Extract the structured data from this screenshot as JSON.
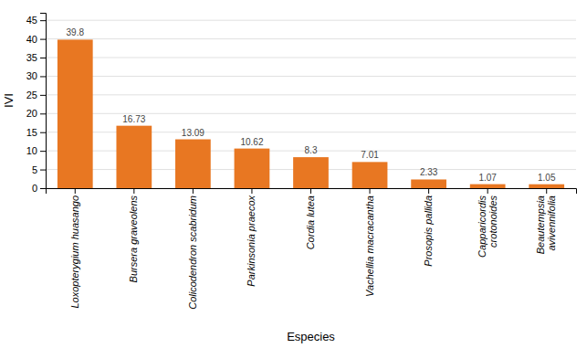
{
  "chart_data": {
    "type": "bar",
    "xlabel": "Especies",
    "ylabel": "IVI",
    "categories": [
      "Loxopterygium huasango",
      "Bursera graveolens",
      "Colicodendron scabridum",
      "Parkinsonia praecox",
      "Cordia lutea",
      "Vachellia macracantha",
      "Prosopis pallida",
      "Capparicordis\ncrotonoides",
      "Beautempsia\navivennifolia"
    ],
    "values": [
      39.8,
      16.73,
      13.09,
      10.62,
      8.3,
      7.01,
      2.33,
      1.07,
      1.05
    ],
    "color": "#E87722",
    "ylim": [
      0,
      47
    ],
    "yticks": [
      0,
      5,
      10,
      15,
      20,
      25,
      30,
      35,
      40,
      45
    ],
    "grid": true,
    "data_labels": true
  }
}
